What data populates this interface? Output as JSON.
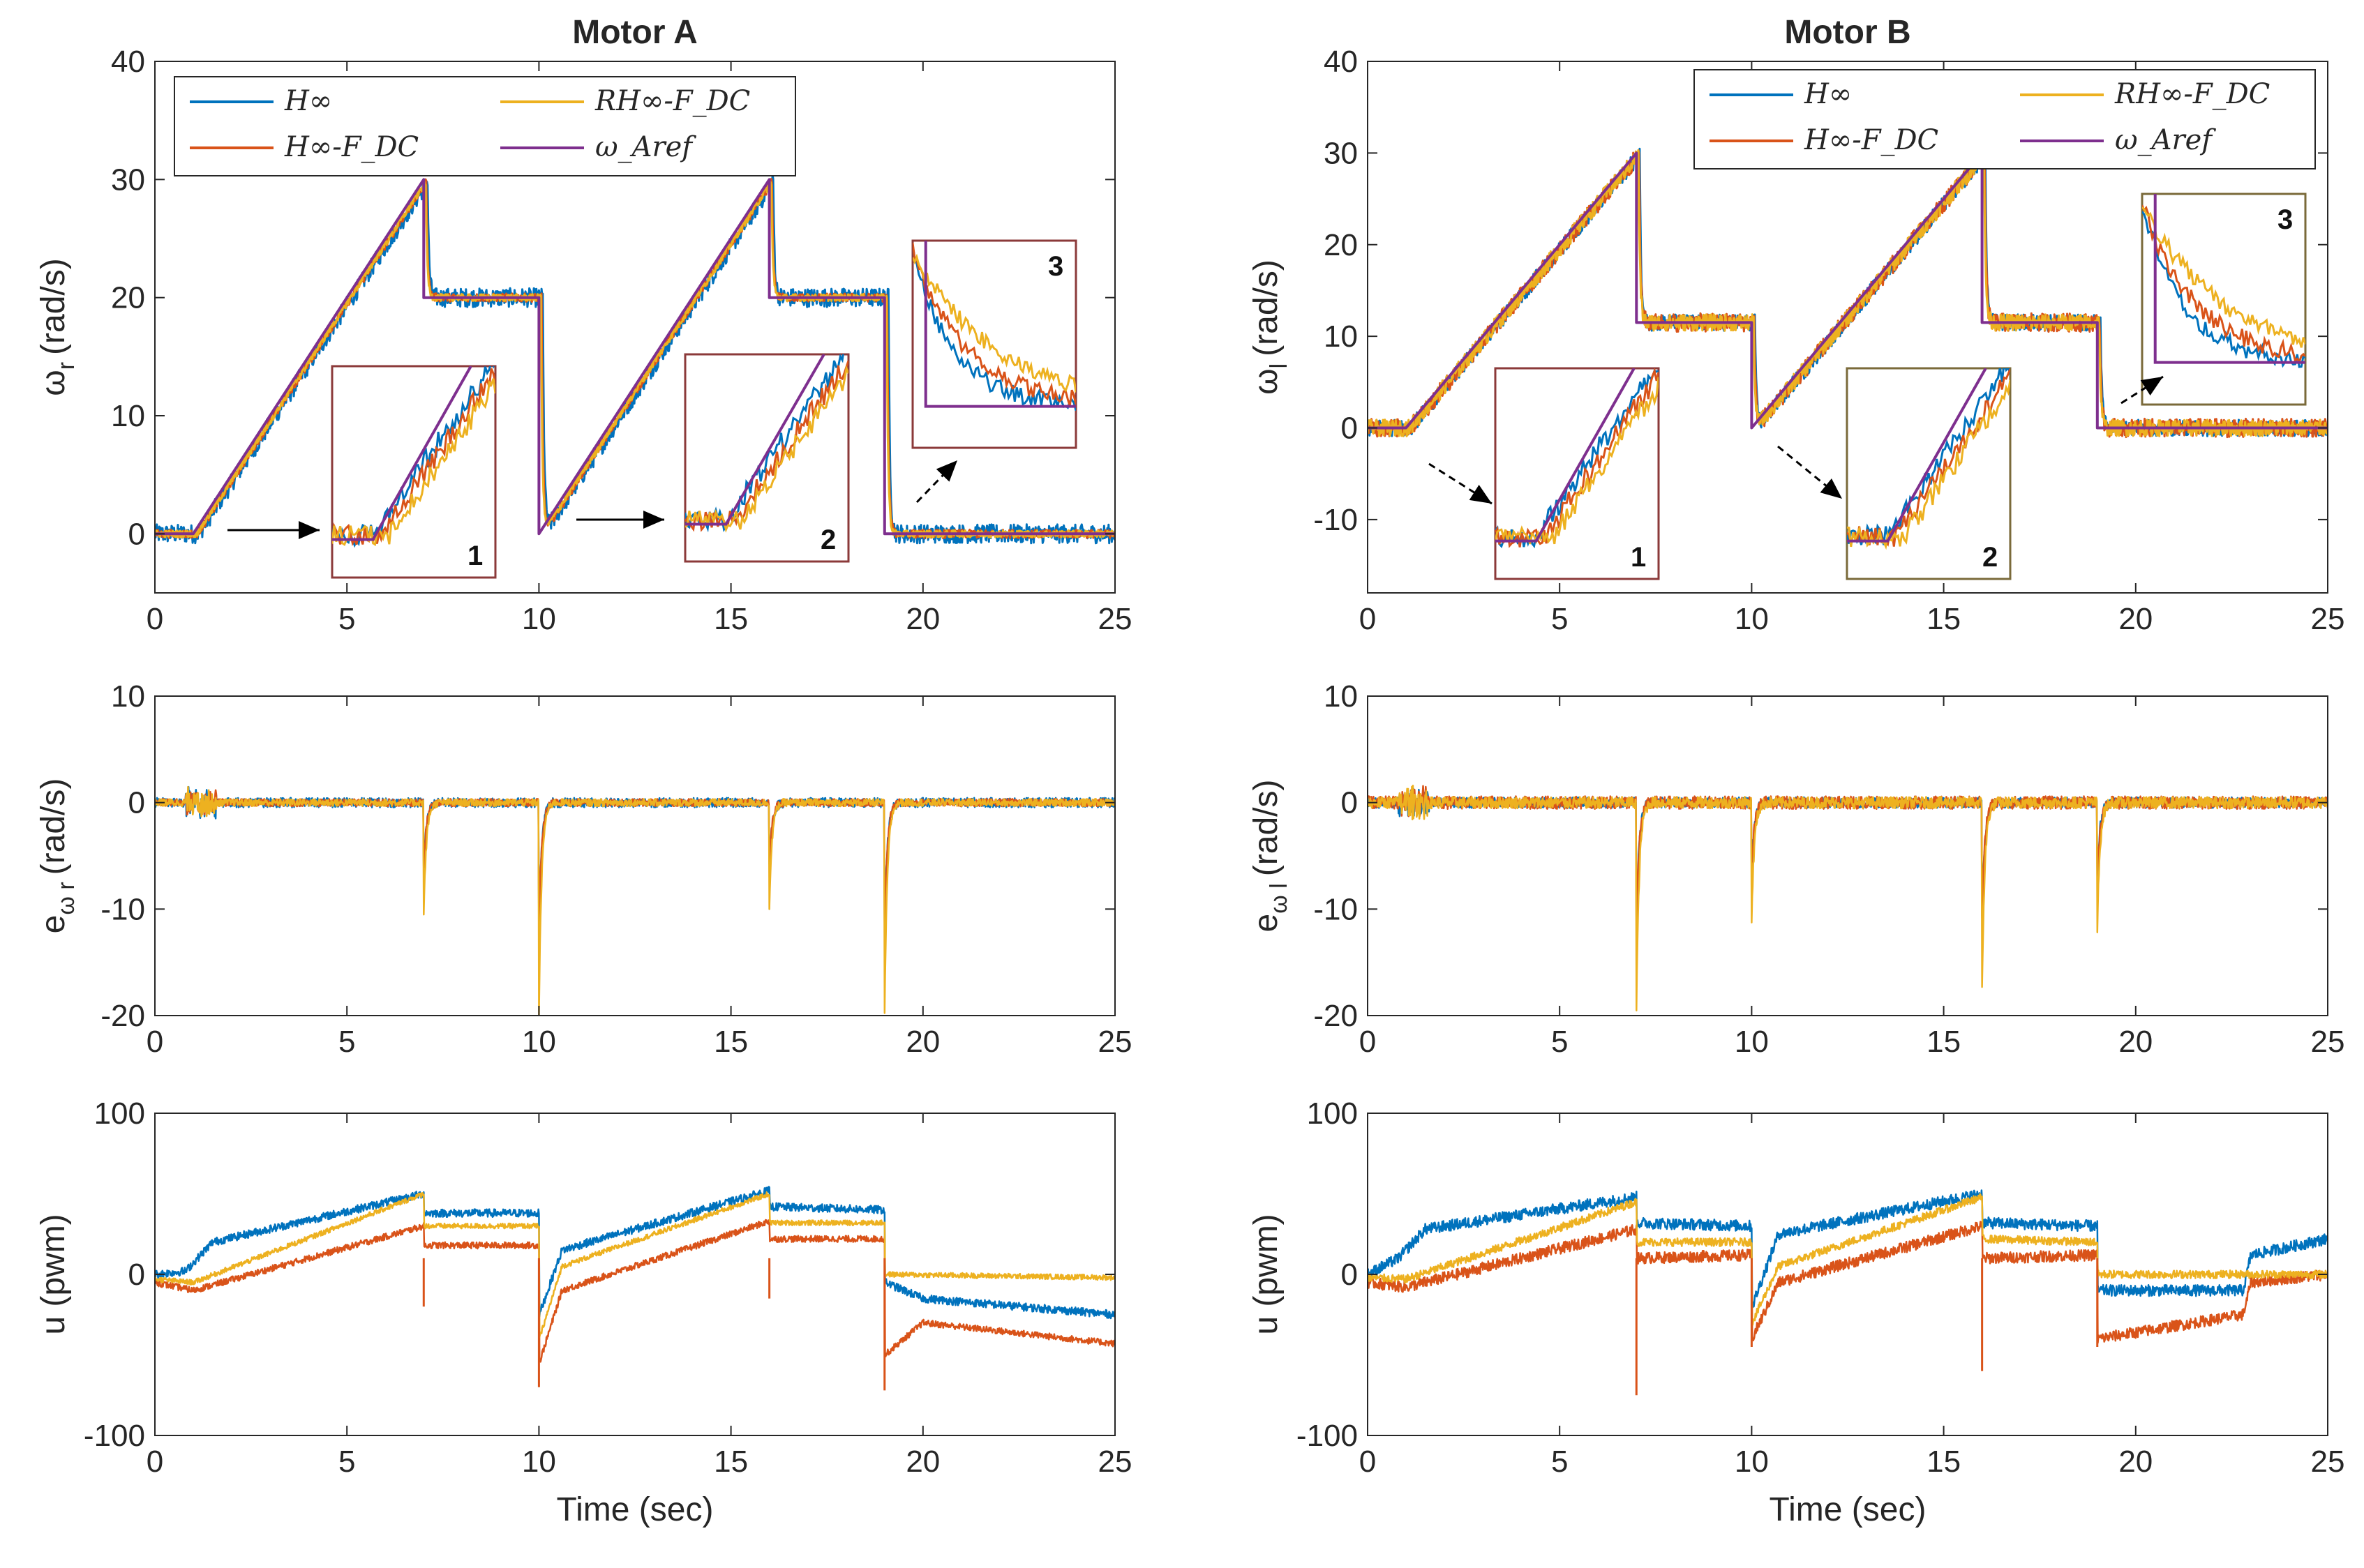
{
  "colors": {
    "hinf": "#0072BD",
    "hinf_fdc": "#D95319",
    "rhinf_fdc": "#EDB120",
    "ref": "#7E2F8E",
    "axis": "#262626",
    "zoom_box": "#8B3A3A",
    "zoom_box_alt": "#7A6A3A"
  },
  "chart_data": [
    {
      "id": "A-speed",
      "type": "line",
      "title": "Motor A",
      "xlabel": "",
      "ylabel": "ω_r (rad/s)",
      "ylabel_main": "ω",
      "ylabel_sub": "r",
      "ylabel_unit": "(rad/s)",
      "xlim": [
        0,
        25
      ],
      "ylim": [
        -5,
        40
      ],
      "xticks": [
        "0",
        "5",
        "10",
        "15",
        "20",
        "25"
      ],
      "yticks": [
        "0",
        "10",
        "20",
        "30",
        "40"
      ],
      "legend": [
        "H∞",
        "H∞-F_DC",
        "RH∞-F_DC",
        "ω_Aref"
      ],
      "reference": {
        "t": [
          0,
          1,
          7,
          7,
          10,
          10,
          16,
          16,
          19,
          19,
          25
        ],
        "v": [
          0,
          0,
          30,
          20,
          20,
          0,
          30,
          20,
          20,
          0,
          0
        ]
      },
      "series": [
        {
          "name": "H∞",
          "noise": 0.8,
          "lag": 0.35
        },
        {
          "name": "H∞-F_DC",
          "noise": 0.35,
          "lag": 0.25
        },
        {
          "name": "RH∞-F_DC",
          "noise": 0.3,
          "lag": 0.2
        }
      ],
      "zoom_labels": [
        "1",
        "2",
        "3"
      ]
    },
    {
      "id": "B-speed",
      "type": "line",
      "title": "Motor B",
      "xlabel": "",
      "ylabel": "ω_l (rad/s)",
      "ylabel_main": "ω",
      "ylabel_sub": "l",
      "ylabel_unit": "(rad/s)",
      "xlim": [
        0,
        25
      ],
      "ylim": [
        -18,
        40
      ],
      "xticks": [
        "0",
        "5",
        "10",
        "15",
        "20",
        "25"
      ],
      "yticks": [
        "-10",
        "0",
        "10",
        "20",
        "30",
        "40"
      ],
      "legend": [
        "H∞",
        "H∞-F_DC",
        "RH∞-F_DC",
        "ω_Aref"
      ],
      "reference": {
        "t": [
          0,
          1,
          7,
          7,
          10,
          10,
          16,
          16,
          19,
          19,
          25
        ],
        "v": [
          0,
          0,
          30,
          11.5,
          11.5,
          0,
          30,
          11.5,
          11.5,
          0,
          0
        ]
      },
      "series": [
        {
          "name": "H∞",
          "noise": 0.9,
          "lag": 0.3
        },
        {
          "name": "H∞-F_DC",
          "noise": 1.0,
          "lag": 0.25
        },
        {
          "name": "RH∞-F_DC",
          "noise": 0.9,
          "lag": 0.2
        }
      ],
      "zoom_labels": [
        "1",
        "2",
        "3"
      ]
    },
    {
      "id": "A-error",
      "type": "line",
      "title": "",
      "xlabel": "",
      "ylabel": "e_ω r (rad/s)",
      "ylabel_main": "e",
      "ylabel_sub": "ω r",
      "ylabel_unit": "(rad/s)",
      "xlim": [
        0,
        25
      ],
      "ylim": [
        -20,
        10
      ],
      "xticks": [
        "0",
        "5",
        "10",
        "15",
        "20",
        "25"
      ],
      "yticks": [
        "-20",
        "-10",
        "0",
        "10"
      ],
      "spikes": [
        {
          "t": 7,
          "v": -10.5
        },
        {
          "t": 10,
          "v": -19.8
        },
        {
          "t": 16,
          "v": -9.8
        },
        {
          "t": 19,
          "v": -20
        }
      ],
      "series": [
        {
          "name": "H∞",
          "noise": 0.45
        },
        {
          "name": "H∞-F_DC",
          "noise": 0.35
        },
        {
          "name": "RH∞-F_DC",
          "noise": 0.35
        }
      ]
    },
    {
      "id": "B-error",
      "type": "line",
      "title": "",
      "xlabel": "",
      "ylabel": "e_ω l (rad/s)",
      "ylabel_main": "e",
      "ylabel_sub": "ω l",
      "ylabel_unit": "(rad/s)",
      "xlim": [
        0,
        25
      ],
      "ylim": [
        -20,
        10
      ],
      "xticks": [
        "0",
        "5",
        "10",
        "15",
        "20",
        "25"
      ],
      "yticks": [
        "-20",
        "-10",
        "0",
        "10"
      ],
      "spikes": [
        {
          "t": 7,
          "v": -19.5
        },
        {
          "t": 10,
          "v": -11
        },
        {
          "t": 16,
          "v": -17.5
        },
        {
          "t": 19,
          "v": -12
        }
      ],
      "series": [
        {
          "name": "H∞",
          "noise": 0.5
        },
        {
          "name": "H∞-F_DC",
          "noise": 0.6
        },
        {
          "name": "RH∞-F_DC",
          "noise": 0.55
        }
      ]
    },
    {
      "id": "A-control",
      "type": "line",
      "title": "",
      "xlabel": "Time (sec)",
      "ylabel": "u (pwm)",
      "ylabel_main": "u (pwm)",
      "ylabel_sub": "",
      "ylabel_unit": "",
      "xlim": [
        0,
        25
      ],
      "ylim": [
        -100,
        100
      ],
      "xticks": [
        "0",
        "5",
        "10",
        "15",
        "20",
        "25"
      ],
      "yticks": [
        "-100",
        "0",
        "100"
      ],
      "series": [
        {
          "name": "H∞",
          "noise": 2.5,
          "knots": {
            "t": [
              0,
              0.8,
              1.5,
              7,
              7.01,
              10,
              10.01,
              10.6,
              16,
              16.01,
              19,
              19.01,
              20,
              25
            ],
            "v": [
              0,
              2,
              20,
              50,
              38,
              38,
              -25,
              15,
              52,
              42,
              40,
              -5,
              -15,
              -25
            ]
          }
        },
        {
          "name": "H∞-F_DC",
          "noise": 2.0,
          "knots": {
            "t": [
              0,
              1,
              7,
              7.01,
              10,
              10.01,
              10.6,
              16,
              16.01,
              19,
              19.01,
              20,
              25
            ],
            "v": [
              -5,
              -10,
              30,
              18,
              18,
              -55,
              -10,
              33,
              22,
              22,
              -50,
              -30,
              -43
            ]
          }
        },
        {
          "name": "RH∞-F_DC",
          "noise": 1.6,
          "knots": {
            "t": [
              0,
              1,
              7,
              7.01,
              10,
              10.01,
              10.6,
              16,
              16.01,
              19,
              19.01,
              25
            ],
            "v": [
              -3,
              -5,
              50,
              30,
              30,
              -40,
              5,
              50,
              32,
              32,
              0,
              -2
            ]
          }
        }
      ],
      "spikes": [
        {
          "t": 7,
          "v": -20,
          "series": 1
        },
        {
          "t": 10,
          "v": -70,
          "series": 1
        },
        {
          "t": 16,
          "v": -15,
          "series": 1
        },
        {
          "t": 19,
          "v": -72,
          "series": 1
        }
      ]
    },
    {
      "id": "B-control",
      "type": "line",
      "title": "",
      "xlabel": "Time (sec)",
      "ylabel": "u (pwm)",
      "ylabel_main": "u (pwm)",
      "ylabel_sub": "",
      "ylabel_unit": "",
      "xlim": [
        0,
        25
      ],
      "ylim": [
        -100,
        100
      ],
      "xticks": [
        "0",
        "5",
        "10",
        "15",
        "20",
        "25"
      ],
      "yticks": [
        "-100",
        "0",
        "100"
      ],
      "series": [
        {
          "name": "H∞",
          "noise": 3.5,
          "knots": {
            "t": [
              0,
              0.8,
              1.5,
              7,
              7.01,
              10,
              10.01,
              10.7,
              16,
              16.01,
              19,
              19.01,
              22.8,
              23,
              25
            ],
            "v": [
              0,
              10,
              28,
              48,
              32,
              30,
              -20,
              25,
              50,
              32,
              30,
              -10,
              -10,
              12,
              22
            ]
          }
        },
        {
          "name": "H∞-F_DC",
          "noise": 3.5,
          "knots": {
            "t": [
              0,
              1,
              7,
              7.01,
              10,
              10.01,
              10.7,
              16,
              16.01,
              19,
              19.01,
              22.8,
              23,
              25
            ],
            "v": [
              -5,
              -8,
              28,
              10,
              12,
              -40,
              -5,
              30,
              10,
              12,
              -40,
              -25,
              -5,
              0
            ]
          }
        },
        {
          "name": "RH∞-F_DC",
          "noise": 2.5,
          "knots": {
            "t": [
              0,
              1,
              7,
              7.01,
              10,
              10.01,
              10.7,
              16,
              16.01,
              19,
              19.01,
              25
            ],
            "v": [
              -2,
              -3,
              45,
              20,
              20,
              -30,
              5,
              48,
              22,
              20,
              0,
              0
            ]
          }
        }
      ],
      "spikes": [
        {
          "t": 7,
          "v": -75,
          "series": 1
        },
        {
          "t": 10,
          "v": -45,
          "series": 1
        },
        {
          "t": 16,
          "v": -60,
          "series": 1
        },
        {
          "t": 19,
          "v": -45,
          "series": 1
        }
      ]
    }
  ]
}
